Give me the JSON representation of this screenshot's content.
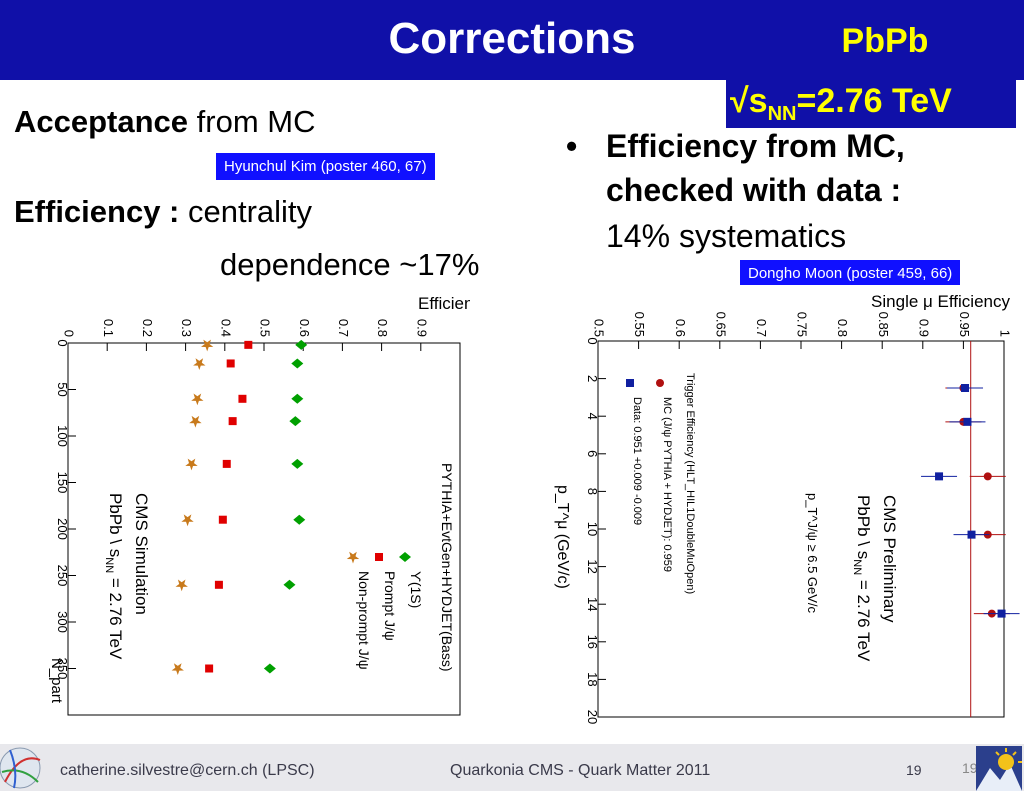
{
  "slide": {
    "title": "Corrections",
    "system": "PbPb",
    "energy_prefix": "√s",
    "energy_sub": "NN",
    "energy_value": "=2.76 TeV",
    "acceptance_bold": "Acceptance",
    "acceptance_rest": " from MC",
    "tag_left": "Hyunchul Kim (poster 460, 67)",
    "efficiency_bold": "Efficiency :",
    "efficiency_rest": " centrality",
    "efficiency_line2": "dependence ~17%",
    "bullet_char": "•",
    "bullet_line1": "Efficiency from MC,",
    "bullet_line2": "checked with data :",
    "bullet_line3": "14% systematics",
    "tag_right": "Dongho Moon (poster 459, 66)"
  },
  "footer": {
    "email": "catherine.silvestre@cern.ch (LPSC)",
    "talk": "Quarkonia CMS - Quark Matter 2011",
    "page": "19",
    "page_ghost": "19"
  },
  "chart_data": [
    {
      "type": "scatter",
      "title": "Efficiency",
      "xlabel": "N_part",
      "xlim": [
        0,
        400
      ],
      "ylim": [
        0,
        1.0
      ],
      "x_ticks": [
        "0",
        "50",
        "100",
        "150",
        "200",
        "250",
        "300",
        "350"
      ],
      "y_ticks": [
        "0",
        "0.1",
        "0.2",
        "0.3",
        "0.4",
        "0.5",
        "0.6",
        "0.7",
        "0.8",
        "0.9"
      ],
      "legend_header": "PYTHIA+EvtGen+HYDJET(Bass)",
      "annotation_line1": "CMS Simulation",
      "annotation_line2": "PbPb \\ s",
      "annotation_sub": "NN",
      "annotation_line2_end": " = 2.76 TeV",
      "series": [
        {
          "name": "ϒ(1S)",
          "color": "#00a000",
          "marker": "diamond",
          "x": [
            2,
            22,
            60,
            84,
            130,
            190,
            260,
            350
          ],
          "y": [
            0.595,
            0.585,
            0.585,
            0.58,
            0.585,
            0.59,
            0.565,
            0.515
          ]
        },
        {
          "name": "Prompt J/ψ",
          "color": "#e00000",
          "marker": "square",
          "x": [
            2,
            22,
            60,
            84,
            130,
            190,
            260,
            350
          ],
          "y": [
            0.46,
            0.415,
            0.445,
            0.42,
            0.405,
            0.395,
            0.385,
            0.36
          ]
        },
        {
          "name": "Non-prompt J/ψ",
          "color": "#c87a1c",
          "marker": "star",
          "x": [
            2,
            22,
            60,
            84,
            130,
            190,
            260,
            350
          ],
          "y": [
            0.355,
            0.335,
            0.33,
            0.325,
            0.315,
            0.305,
            0.29,
            0.28
          ]
        }
      ]
    },
    {
      "type": "scatter",
      "title": "Single μ Efficiency",
      "xlabel": "p_T^μ (GeV/c)",
      "xlim": [
        0,
        20
      ],
      "ylim": [
        0.5,
        1.0
      ],
      "x_ticks": [
        "0",
        "2",
        "4",
        "6",
        "8",
        "10",
        "12",
        "14",
        "16",
        "18",
        "20"
      ],
      "y_ticks": [
        "0.5",
        "0.55",
        "0.6",
        "0.65",
        "0.7",
        "0.75",
        "0.8",
        "0.85",
        "0.9",
        "0.95",
        "1"
      ],
      "legend_header": "Trigger Efficiency (HLT_HIL1DoubleMuOpen)",
      "annotation_line1": "CMS Preliminary",
      "annotation_line2": "PbPb \\ s",
      "annotation_sub": "NN",
      "annotation_line2_end": " = 2.76 TeV",
      "annotation_line3": "p_T^J/ψ ≥ 6.5 GeV/c",
      "series": [
        {
          "name": "MC (J/ψ PYTHIA + HYDJET): 0.959",
          "color": "#b01010",
          "marker": "circle",
          "x": [
            2.5,
            4.3,
            7.2,
            10.3,
            14.5
          ],
          "y": [
            0.95,
            0.95,
            0.98,
            0.98,
            0.985
          ]
        },
        {
          "name": "Data: 0.951 +0.009 -0.009",
          "color": "#1020a0",
          "marker": "square",
          "x": [
            2.5,
            4.3,
            7.2,
            10.3,
            14.5
          ],
          "y": [
            0.952,
            0.955,
            0.92,
            0.96,
            0.997
          ]
        }
      ]
    }
  ]
}
